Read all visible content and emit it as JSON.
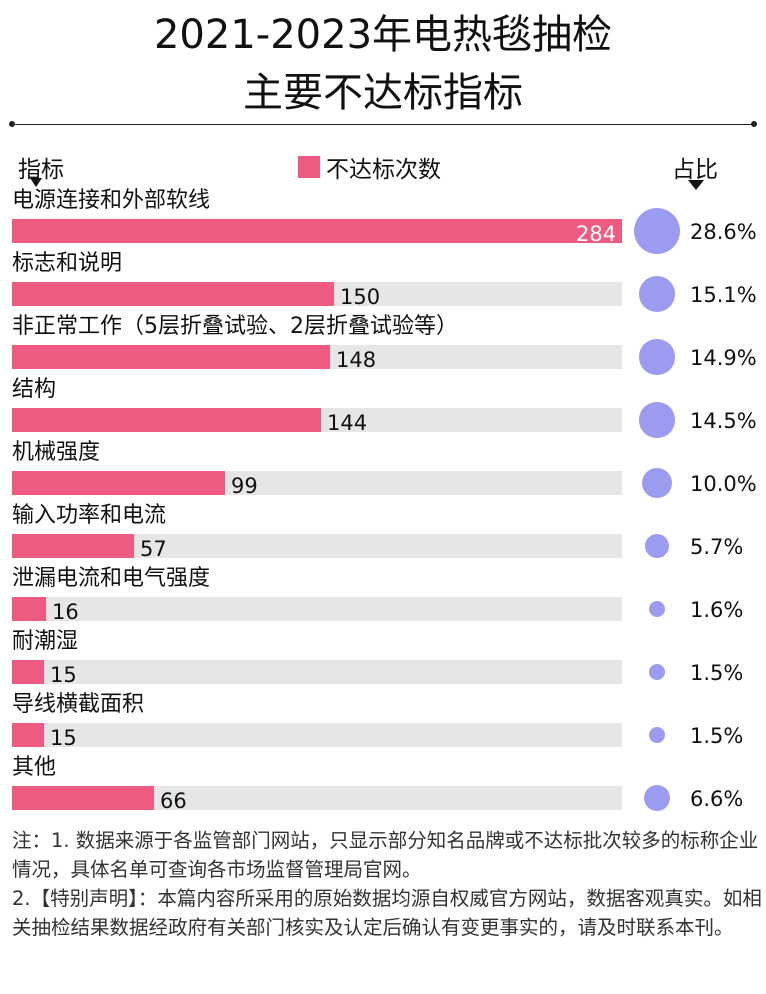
{
  "title_line1": "2021-2023年电热毯抽检",
  "title_line2": "主要不达标指标",
  "header": {
    "indicator_label": "指标",
    "legend_label": "不达标次数",
    "ratio_label": "占比"
  },
  "colors": {
    "bar": "#ef5b80",
    "track": "#e6e6e6",
    "bubble": "#9b9cf0"
  },
  "chart_data": {
    "type": "bar",
    "orientation": "horizontal",
    "categories": [
      "电源连接和外部软线",
      "标志和说明",
      "非正常工作（5层折叠试验、2层折叠试验等）",
      "结构",
      "机械强度",
      "输入功率和电流",
      "泄漏电流和电气强度",
      "耐潮湿",
      "导线横截面积",
      "其他"
    ],
    "series": [
      {
        "name": "不达标次数",
        "values": [
          284,
          150,
          148,
          144,
          99,
          57,
          16,
          15,
          15,
          66
        ]
      }
    ],
    "ratios": [
      "28.6%",
      "15.1%",
      "14.9%",
      "14.5%",
      "10.0%",
      "5.7%",
      "1.6%",
      "1.5%",
      "1.5%",
      "6.6%"
    ],
    "ratio_values": [
      28.6,
      15.1,
      14.9,
      14.5,
      10.0,
      5.7,
      1.6,
      1.5,
      1.5,
      6.6
    ],
    "xlim": [
      0,
      284
    ],
    "legend_position": "top-center",
    "grid": false
  },
  "notes": {
    "line1": "注：1. 数据来源于各监管部门网站，只显示部分知名品牌或不达标批次较多的标称企业情况，具体名单可查询各市场监督管理局官网。",
    "line2": "2.【特别声明】：本篇内容所采用的原始数据均源自权威官方网站，数据客观真实。如相关抽检结果数据经政府有关部门核实及认定后确认有变更事实的，请及时联系本刊。"
  }
}
